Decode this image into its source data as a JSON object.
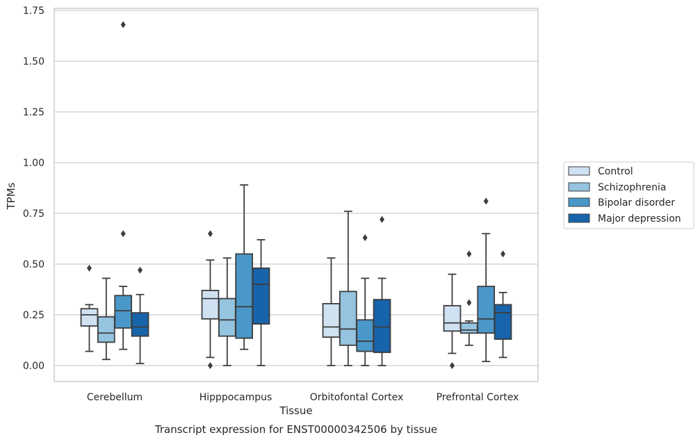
{
  "caption": "Transcript expression for ENST00000342506 by tissue",
  "chart_data": {
    "type": "boxplot",
    "xlabel": "Tissue",
    "ylabel": "TPMs",
    "ylim": [
      -0.08,
      1.76
    ],
    "yticks": [
      "0.00",
      "0.25",
      "0.50",
      "0.75",
      "1.00",
      "1.25",
      "1.50",
      "1.75"
    ],
    "categories": [
      "Cerebellum",
      "Hipppocampus",
      "Orbitofontal Cortex",
      "Prefrontal Cortex"
    ],
    "grid": "horizontal",
    "legend_position": "right",
    "series": [
      {
        "name": "Control",
        "color": "#d0e1f2",
        "boxes": [
          {
            "whislo": 0.07,
            "q1": 0.195,
            "med": 0.25,
            "q3": 0.28,
            "whishi": 0.3,
            "fliers": [
              0.48
            ]
          },
          {
            "whislo": 0.04,
            "q1": 0.23,
            "med": 0.33,
            "q3": 0.37,
            "whishi": 0.52,
            "fliers": [
              0.0,
              0.65
            ]
          },
          {
            "whislo": 0.0,
            "q1": 0.14,
            "med": 0.19,
            "q3": 0.305,
            "whishi": 0.53,
            "fliers": []
          },
          {
            "whislo": 0.06,
            "q1": 0.17,
            "med": 0.21,
            "q3": 0.295,
            "whishi": 0.45,
            "fliers": [
              0.0
            ]
          }
        ]
      },
      {
        "name": "Schizophrenia",
        "color": "#94c4df",
        "boxes": [
          {
            "whislo": 0.03,
            "q1": 0.115,
            "med": 0.16,
            "q3": 0.24,
            "whishi": 0.43,
            "fliers": []
          },
          {
            "whislo": 0.0,
            "q1": 0.145,
            "med": 0.225,
            "q3": 0.33,
            "whishi": 0.53,
            "fliers": []
          },
          {
            "whislo": 0.0,
            "q1": 0.1,
            "med": 0.18,
            "q3": 0.365,
            "whishi": 0.76,
            "fliers": []
          },
          {
            "whislo": 0.1,
            "q1": 0.16,
            "med": 0.175,
            "q3": 0.21,
            "whishi": 0.22,
            "fliers": [
              0.31,
              0.55
            ]
          }
        ]
      },
      {
        "name": "Bipolar disorder",
        "color": "#4a98c9",
        "boxes": [
          {
            "whislo": 0.08,
            "q1": 0.185,
            "med": 0.27,
            "q3": 0.345,
            "whishi": 0.39,
            "fliers": [
              0.65,
              1.68
            ]
          },
          {
            "whislo": 0.08,
            "q1": 0.135,
            "med": 0.29,
            "q3": 0.55,
            "whishi": 0.89,
            "fliers": []
          },
          {
            "whislo": 0.0,
            "q1": 0.07,
            "med": 0.12,
            "q3": 0.225,
            "whishi": 0.43,
            "fliers": [
              0.63
            ]
          },
          {
            "whislo": 0.02,
            "q1": 0.16,
            "med": 0.23,
            "q3": 0.39,
            "whishi": 0.65,
            "fliers": [
              0.81
            ]
          }
        ]
      },
      {
        "name": "Major depression",
        "color": "#1764ab",
        "boxes": [
          {
            "whislo": 0.01,
            "q1": 0.145,
            "med": 0.19,
            "q3": 0.26,
            "whishi": 0.35,
            "fliers": [
              0.47
            ]
          },
          {
            "whislo": 0.0,
            "q1": 0.205,
            "med": 0.4,
            "q3": 0.48,
            "whishi": 0.62,
            "fliers": []
          },
          {
            "whislo": 0.0,
            "q1": 0.065,
            "med": 0.19,
            "q3": 0.325,
            "whishi": 0.43,
            "fliers": [
              0.72
            ]
          },
          {
            "whislo": 0.04,
            "q1": 0.13,
            "med": 0.26,
            "q3": 0.3,
            "whishi": 0.36,
            "fliers": [
              0.55
            ]
          }
        ]
      }
    ]
  }
}
